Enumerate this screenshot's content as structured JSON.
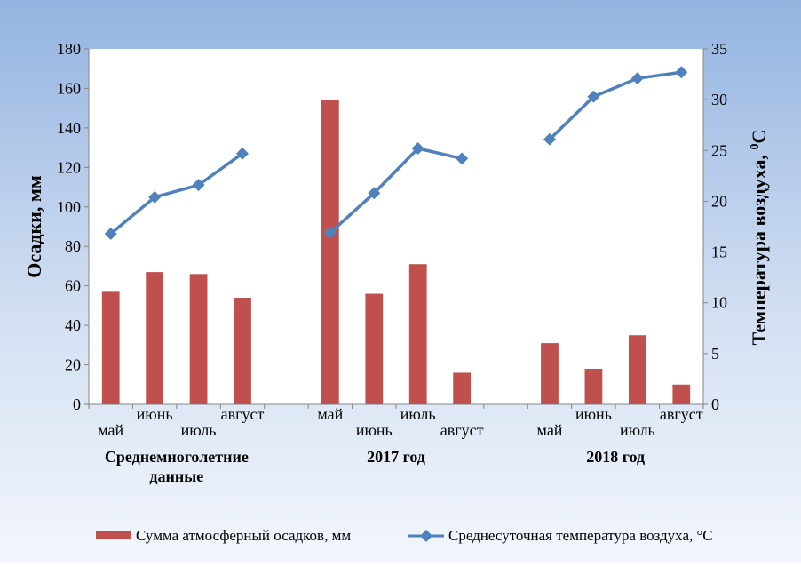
{
  "chart_data": {
    "type": "bar+line",
    "groups": [
      {
        "label": "Среднемноголетние данные",
        "label_lines": [
          "Среднемноголетние",
          "данные"
        ]
      },
      {
        "label": "2017 год",
        "label_lines": [
          "2017 год"
        ]
      },
      {
        "label": "2018 год",
        "label_lines": [
          "2018 год"
        ]
      }
    ],
    "categories": [
      "май",
      "июнь",
      "июль",
      "август",
      "",
      "май",
      "июнь",
      "июль",
      "август",
      "",
      "май",
      "июнь",
      "июль",
      "август"
    ],
    "ylabel_left": "Осадки, мм",
    "ylabel_right": "Температура  воздуха, ",
    "ylabel_right_sup": "0",
    "ylabel_right_unit": "C",
    "ylim_left": [
      0,
      180
    ],
    "yticks_left": [
      0,
      20,
      40,
      60,
      80,
      100,
      120,
      140,
      160,
      180
    ],
    "ylim_right": [
      0,
      35
    ],
    "yticks_right": [
      0,
      5,
      10,
      15,
      20,
      25,
      30,
      35
    ],
    "grid": false,
    "legend_position": "bottom",
    "series": [
      {
        "name": "Сумма атмосферный осадков, мм",
        "type": "bar",
        "axis": "left",
        "color": "#C0504D",
        "values": [
          57,
          67,
          66,
          54,
          null,
          154,
          56,
          71,
          16,
          null,
          31,
          18,
          35,
          10
        ]
      },
      {
        "name": "Среднесуточная температура воздуха, °С",
        "type": "line",
        "axis": "right",
        "color": "#4F81BD",
        "values": [
          16.8,
          20.4,
          21.6,
          24.7,
          null,
          16.9,
          20.8,
          25.2,
          24.2,
          null,
          26.1,
          30.3,
          32.1,
          32.7
        ]
      }
    ]
  }
}
